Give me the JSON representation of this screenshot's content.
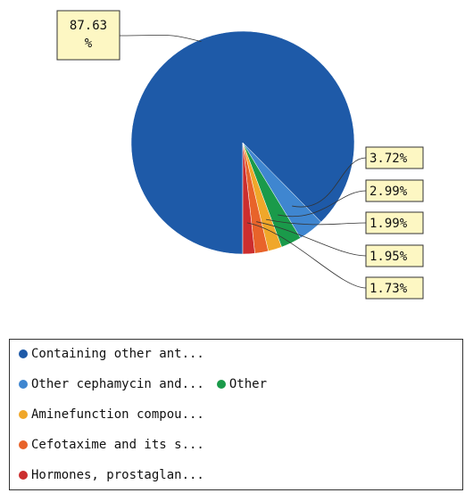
{
  "chart_data": {
    "type": "pie",
    "slices": [
      {
        "name": "Containing other ant...",
        "value": 87.63,
        "label": "87.63\n%",
        "color": "#1e5aa8"
      },
      {
        "name": "Other cephamycin and...",
        "value": 3.72,
        "label": "3.72%",
        "color": "#3f86d0"
      },
      {
        "name": "Other",
        "value": 2.99,
        "label": "2.99%",
        "color": "#1a9a4a"
      },
      {
        "name": "Aminefunction compou...",
        "value": 1.99,
        "label": "1.99%",
        "color": "#f0a72a"
      },
      {
        "name": "Cefotaxime and its s...",
        "value": 1.95,
        "label": "1.95%",
        "color": "#e8632a"
      },
      {
        "name": "Hormones, prostaglan...",
        "value": 1.73,
        "label": "1.73%",
        "color": "#cc2e2e"
      }
    ]
  },
  "legend": {
    "rows": [
      [
        {
          "label": "Containing other ant...",
          "color": "#1e5aa8"
        }
      ],
      [
        {
          "label": "Other cephamycin and...",
          "color": "#3f86d0"
        },
        {
          "label": "Other",
          "color": "#1a9a4a"
        }
      ],
      [
        {
          "label": "Aminefunction compou...",
          "color": "#f0a72a"
        }
      ],
      [
        {
          "label": "Cefotaxime and its s...",
          "color": "#e8632a"
        }
      ],
      [
        {
          "label": "Hormones, prostaglan...",
          "color": "#cc2e2e"
        }
      ]
    ]
  }
}
